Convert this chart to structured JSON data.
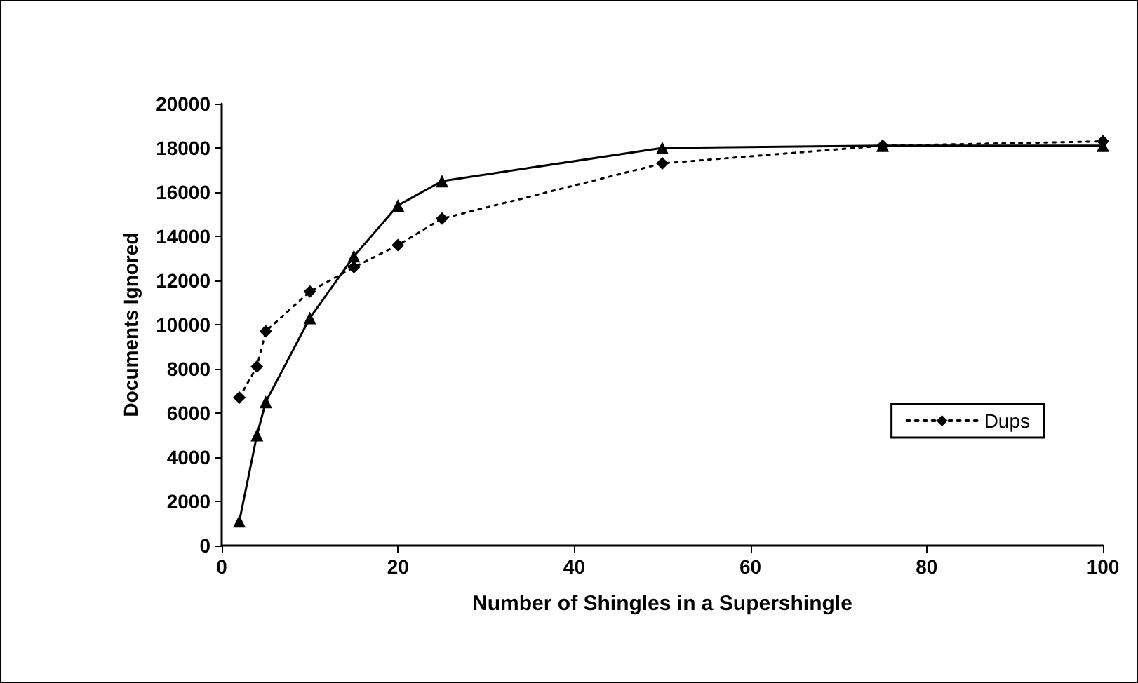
{
  "chart_data": {
    "type": "line",
    "xlabel": "Number of Shingles in a Supershingle",
    "ylabel": "Documents Ignored",
    "x": [
      2,
      4,
      5,
      10,
      15,
      20,
      25,
      50,
      75,
      100
    ],
    "series": [
      {
        "name": "Dups",
        "color": "#000000",
        "marker": "diamond",
        "line_style": "dotted",
        "values": [
          6700,
          8100,
          9700,
          11500,
          12600,
          13600,
          14800,
          17300,
          18100,
          18300
        ]
      },
      {
        "color": "#000000",
        "marker": "triangle",
        "line_style": "solid",
        "values": [
          1100,
          5000,
          6500,
          10300,
          13100,
          15400,
          16500,
          18000,
          18100,
          18100
        ]
      }
    ],
    "xlim": [
      0,
      100
    ],
    "xticks": [
      0,
      20,
      40,
      60,
      80,
      100
    ],
    "ylim": [
      0,
      20000
    ],
    "yticks": [
      0,
      2000,
      4000,
      6000,
      8000,
      10000,
      12000,
      14000,
      16000,
      18000,
      20000
    ],
    "grid": false,
    "legend": "bottom right"
  }
}
